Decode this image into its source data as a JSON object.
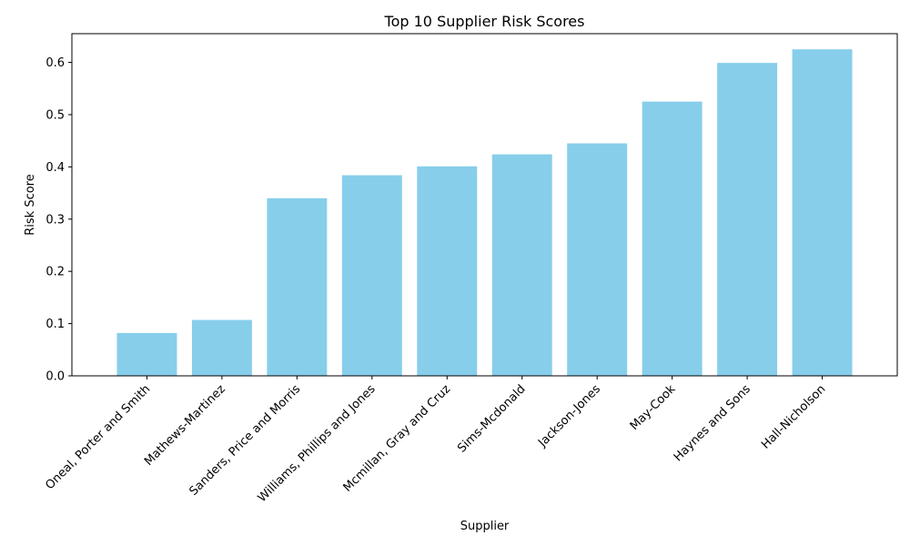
{
  "chart_data": {
    "type": "bar",
    "title": "Top 10 Supplier Risk Scores",
    "xlabel": "Supplier",
    "ylabel": "Risk Score",
    "categories": [
      "Oneal, Porter and Smith",
      "Mathews-Martinez",
      "Sanders, Price and Morris",
      "Williams, Phillips and Jones",
      "Mcmillan, Gray and Cruz",
      "Sims-Mcdonald",
      "Jackson-Jones",
      "May-Cook",
      "Haynes and Sons",
      "Hall-Nicholson"
    ],
    "values": [
      0.082,
      0.107,
      0.34,
      0.384,
      0.401,
      0.424,
      0.445,
      0.525,
      0.599,
      0.625
    ],
    "ylim": [
      0,
      0.655
    ],
    "yticks": [
      0.0,
      0.1,
      0.2,
      0.3,
      0.4,
      0.5,
      0.6
    ],
    "ytick_labels": [
      "0.0",
      "0.1",
      "0.2",
      "0.3",
      "0.4",
      "0.5",
      "0.6"
    ],
    "bar_color": "#87ceeb",
    "grid": false,
    "legend": "none"
  }
}
